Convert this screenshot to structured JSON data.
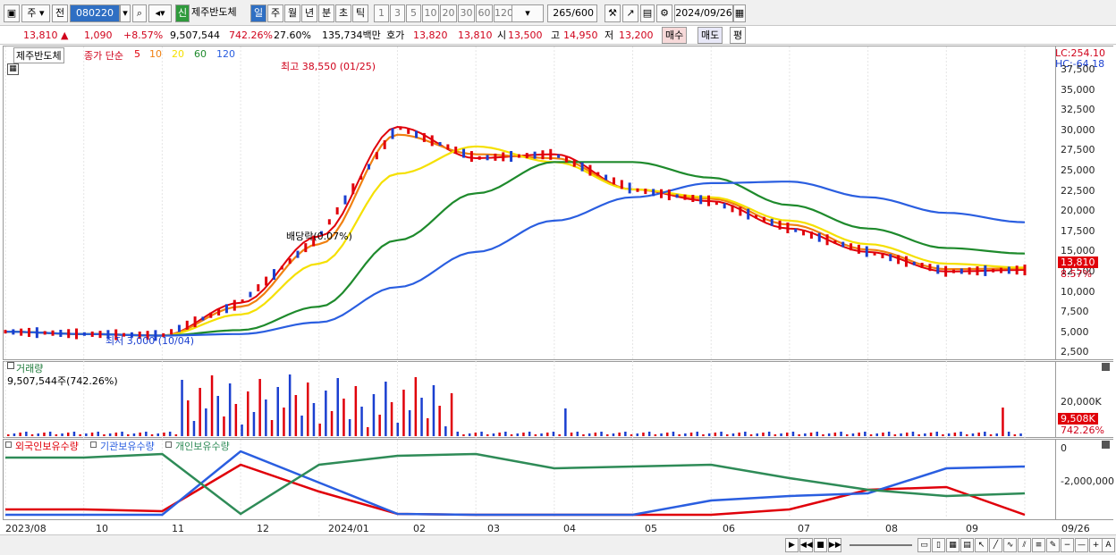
{
  "toolbar": {
    "market_type": "주",
    "prev_label": "전",
    "stock_code": "080220",
    "stock_name": "제주반도체",
    "new_badge": "신",
    "periods": [
      "일",
      "주",
      "월",
      "년",
      "분",
      "초",
      "틱"
    ],
    "active_period": "일",
    "tick_counts": [
      "1",
      "3",
      "5",
      "10",
      "20",
      "30",
      "60",
      "120"
    ],
    "count_display": "265",
    "count_total": "/600",
    "date": "2024/09/26"
  },
  "quote": {
    "price": "13,810",
    "change_symbol": "▲",
    "change": "1,090",
    "change_pct": "+8.57%",
    "volume": "9,507,544",
    "volume_ratio": "742.26%",
    "turnover": "27.60%",
    "amount": "135,734백만",
    "bid_label": "호가",
    "ask_price": "13,820",
    "bid_price": "13,810",
    "open_label": "시",
    "open": "13,500",
    "high_label": "고",
    "high": "14,950",
    "low_label": "저",
    "low": "13,200",
    "buy_button": "매수",
    "sell_button": "매도",
    "eval_button": "평"
  },
  "price_chart": {
    "name_box": "제주반도체",
    "ma_label": "종가 단순",
    "ma_periods": [
      {
        "label": "5",
        "color": "#e0000a"
      },
      {
        "label": "10",
        "color": "#f08010"
      },
      {
        "label": "20",
        "color": "#f5e000"
      },
      {
        "label": "60",
        "color": "#1e8a2c"
      },
      {
        "label": "120",
        "color": "#2a5ee0"
      }
    ],
    "lc_label": "LC:254.10",
    "hc_label": "HC:-64.18",
    "high_annotation": "최고 38,550 (01/25)",
    "low_annotation": "최저 3,000 (10/04)",
    "dividend_annotation": "배당락(0.07%)",
    "price_tag": "13,810",
    "pct_tag": "8.57%",
    "y_ticks": [
      "37,500",
      "35,000",
      "32,500",
      "30,000",
      "27,500",
      "25,000",
      "22,500",
      "20,000",
      "17,500",
      "15,000",
      "12,500",
      "10,000",
      "7,500",
      "5,000",
      "2,500"
    ]
  },
  "volume_chart": {
    "title": "거래량",
    "summary": "9,507,544주(742.26%)",
    "y_tick": "20,000K",
    "volume_tag": "9,508K",
    "ratio_tag": "742.26%"
  },
  "holdings_chart": {
    "legend": [
      {
        "label": "외국인보유수량",
        "color": "#e0000a"
      },
      {
        "label": "기관보유수량",
        "color": "#2a5ee0"
      },
      {
        "label": "개인보유수량",
        "color": "#2e8b57"
      }
    ],
    "y_ticks": [
      "0",
      "-2,000,000"
    ]
  },
  "x_axis": [
    "2023/08",
    "10",
    "11",
    "12",
    "2024/01",
    "02",
    "03",
    "04",
    "05",
    "06",
    "07",
    "08",
    "09",
    "09/26"
  ],
  "colors": {
    "up": "#e0000a",
    "down": "#1a3fd0",
    "accent": "#2f6fc3"
  },
  "chart_data": {
    "type": "line",
    "title": "제주반도체",
    "x": [
      "2023/08",
      "10",
      "11",
      "12",
      "2024/01",
      "02",
      "03",
      "04",
      "05",
      "06",
      "07",
      "08",
      "09",
      "09/26"
    ],
    "ylim": [
      1500,
      38500
    ],
    "series": [
      {
        "name": "5",
        "values": [
          4800,
          4500,
          4300,
          8500,
          17000,
          31000,
          27000,
          27500,
          23000,
          21500,
          18000,
          15000,
          12500,
          12700
        ]
      },
      {
        "name": "10",
        "values": [
          4800,
          4500,
          4300,
          8000,
          16000,
          30000,
          27500,
          27000,
          23000,
          21800,
          18500,
          15300,
          12800,
          12900
        ]
      },
      {
        "name": "20",
        "values": [
          4800,
          4500,
          4300,
          7000,
          13500,
          25000,
          28500,
          26500,
          23000,
          22000,
          19000,
          16000,
          13500,
          13000
        ]
      },
      {
        "name": "60",
        "values": [
          4800,
          4500,
          4300,
          5000,
          8000,
          16500,
          22500,
          26500,
          26500,
          24500,
          21000,
          18000,
          15500,
          14800
        ]
      },
      {
        "name": "120",
        "values": [
          4800,
          4500,
          4300,
          4500,
          6000,
          10500,
          15000,
          19000,
          22000,
          23800,
          24000,
          22000,
          20000,
          18800
        ]
      }
    ],
    "annotations": [
      "최고 38,550 (01/25)",
      "최저 3,000 (10/04)",
      "배당락(0.07%)"
    ]
  }
}
